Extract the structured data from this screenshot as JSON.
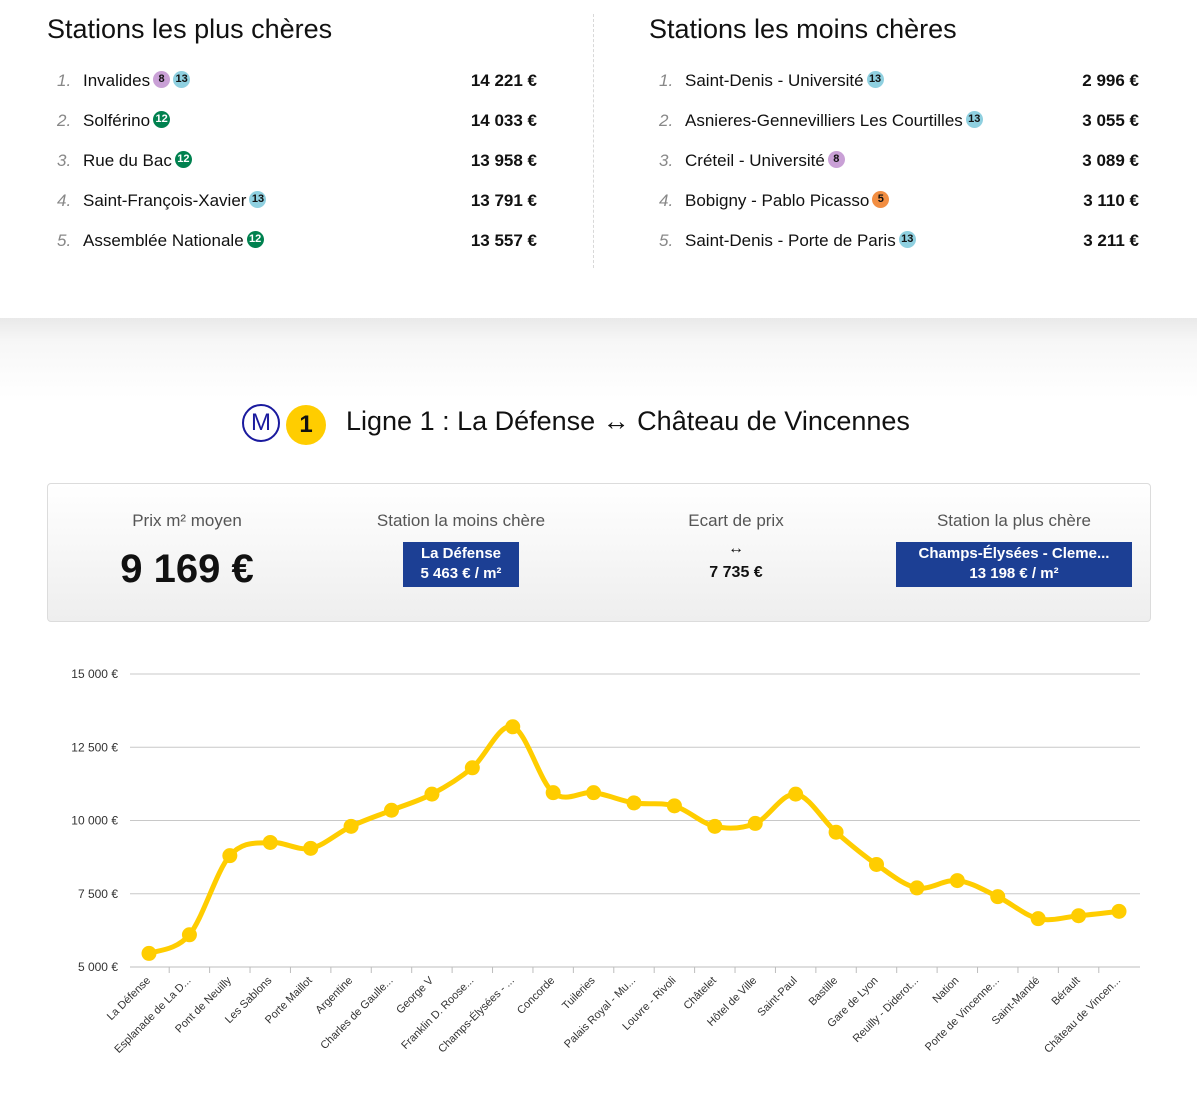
{
  "most_expensive": {
    "title": "Stations les plus chères",
    "items": [
      {
        "rank": "1.",
        "name": "Invalides",
        "lines": [
          "8",
          "13"
        ],
        "price": "14 221 €"
      },
      {
        "rank": "2.",
        "name": "Solférino",
        "lines": [
          "12"
        ],
        "price": "14 033 €"
      },
      {
        "rank": "3.",
        "name": "Rue du Bac",
        "lines": [
          "12"
        ],
        "price": "13 958 €"
      },
      {
        "rank": "4.",
        "name": "Saint-François-Xavier",
        "lines": [
          "13"
        ],
        "price": "13 791 €"
      },
      {
        "rank": "5.",
        "name": "Assemblée Nationale",
        "lines": [
          "12"
        ],
        "price": "13 557 €"
      }
    ]
  },
  "least_expensive": {
    "title": "Stations les moins chères",
    "items": [
      {
        "rank": "1.",
        "name": "Saint-Denis - Université",
        "lines": [
          "13"
        ],
        "price": "2 996 €"
      },
      {
        "rank": "2.",
        "name": "Asnieres-Gennevilliers Les Courtilles",
        "lines": [
          "13"
        ],
        "price": "3 055 €"
      },
      {
        "rank": "3.",
        "name": "Créteil - Université",
        "lines": [
          "8"
        ],
        "price": "3 089 €"
      },
      {
        "rank": "4.",
        "name": "Bobigny - Pablo Picasso",
        "lines": [
          "5"
        ],
        "price": "3 110 €"
      },
      {
        "rank": "5.",
        "name": "Saint-Denis - Porte de Paris",
        "lines": [
          "13"
        ],
        "price": "3 211 €"
      }
    ]
  },
  "line_colors": {
    "5": {
      "bg": "#f28e42",
      "fg": "#111111"
    },
    "8": {
      "bg": "#c9a0d6",
      "fg": "#111111"
    },
    "12": {
      "bg": "#00814f",
      "fg": "#ffffff"
    },
    "13": {
      "bg": "#8fd0e0",
      "fg": "#111111"
    }
  },
  "line": {
    "metro_symbol": "M",
    "number": "1",
    "title": "Ligne 1 : La Défense ↔ Château de Vincennes",
    "line_color": "#ffcd00",
    "metro_color": "#1a1a9e"
  },
  "stats": {
    "avg_label": "Prix m² moyen",
    "avg_value": "9 169 €",
    "min_label": "Station la moins chère",
    "min_station": "La Défense",
    "min_price": "5 463 € / m²",
    "gap_label": "Ecart de prix",
    "gap_arrow": "↔",
    "gap_value": "7 735 €",
    "max_label": "Station la plus chère",
    "max_station": "Champs-Élysées - Cleme...",
    "max_price": "13 198 € / m²",
    "box_color": "#1c3f94"
  },
  "chart_data": {
    "type": "line",
    "ylim": [
      5000,
      15000
    ],
    "yticks": [
      5000,
      7500,
      10000,
      12500,
      15000
    ],
    "ytick_labels": [
      "5 000 €",
      "7 500 €",
      "10 000 €",
      "12 500 €",
      "15 000 €"
    ],
    "grid": true,
    "series_color": "#ffcd00",
    "categories": [
      "La Défense",
      "Esplanade de La D...",
      "Pont de Neuilly",
      "Les Sablons",
      "Porte Maillot",
      "Argentine",
      "Charles de Gaulle...",
      "George V",
      "Franklin D. Roose...",
      "Champs-Élysées - ...",
      "Concorde",
      "Tuileries",
      "Palais Royal - Mu...",
      "Louvre - Rivoli",
      "Châtelet",
      "Hôtel de Ville",
      "Saint-Paul",
      "Bastille",
      "Gare de Lyon",
      "Reuilly - Diderot...",
      "Nation",
      "Porte de Vincenne...",
      "Saint-Mandé",
      "Bérault",
      "Château de Vincen..."
    ],
    "values": [
      5463,
      6100,
      8800,
      9250,
      9050,
      9800,
      10350,
      10900,
      11800,
      13198,
      10950,
      10950,
      10600,
      10500,
      9800,
      9900,
      10900,
      9600,
      8500,
      7700,
      7950,
      7400,
      6650,
      6750,
      6900
    ]
  }
}
